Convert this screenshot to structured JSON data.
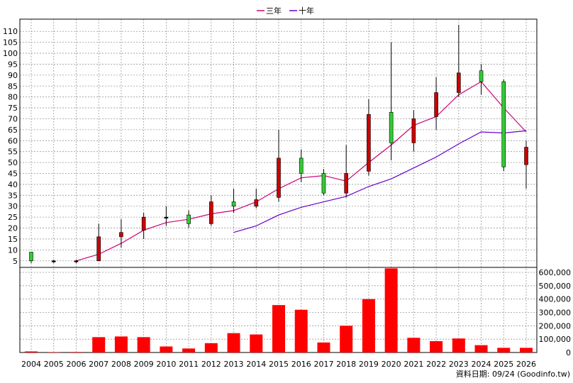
{
  "chart_data": {
    "type": "candlestick",
    "legend": [
      {
        "name": "三年",
        "color": "#cc0077"
      },
      {
        "name": "十年",
        "color": "#6600cc"
      }
    ],
    "categories": [
      "2004",
      "2005",
      "2006",
      "2007",
      "2008",
      "2009",
      "2010",
      "2011",
      "2012",
      "2013",
      "2014",
      "2015",
      "2016",
      "2017",
      "2018",
      "2019",
      "2020",
      "2021",
      "2022",
      "2023",
      "2024",
      "2025",
      "2026"
    ],
    "price_axis": {
      "ticks": [
        5,
        10,
        15,
        20,
        25,
        30,
        35,
        40,
        45,
        50,
        55,
        60,
        65,
        70,
        75,
        80,
        85,
        90,
        95,
        100,
        105,
        110
      ],
      "range": [
        2,
        113
      ]
    },
    "volume_axis": {
      "ticks": [
        "0",
        "100,000",
        "200,000",
        "300,000",
        "400,000",
        "500,000",
        "600,000"
      ],
      "range": [
        0,
        600000
      ]
    },
    "candles": [
      {
        "year": "2004",
        "open": 5,
        "close": 9,
        "high": 9,
        "low": 4
      },
      {
        "year": "2005",
        "open": 5,
        "close": 5,
        "high": 5.5,
        "low": 4
      },
      {
        "year": "2006",
        "open": 5,
        "close": 5,
        "high": 5.5,
        "low": 4
      },
      {
        "year": "2007",
        "open": 16,
        "close": 5,
        "high": 22,
        "low": 5
      },
      {
        "year": "2008",
        "open": 18,
        "close": 16,
        "high": 24,
        "low": 11
      },
      {
        "year": "2009",
        "open": 25,
        "close": 19,
        "high": 27,
        "low": 15
      },
      {
        "year": "2010",
        "open": 25,
        "close": 25,
        "high": 30,
        "low": 21
      },
      {
        "year": "2011",
        "open": 22,
        "close": 26,
        "high": 28,
        "low": 20
      },
      {
        "year": "2012",
        "open": 32,
        "close": 22,
        "high": 35,
        "low": 21
      },
      {
        "year": "2013",
        "open": 30,
        "close": 32,
        "high": 38,
        "low": 27
      },
      {
        "year": "2014",
        "open": 33,
        "close": 30,
        "high": 38,
        "low": 29
      },
      {
        "year": "2015",
        "open": 52,
        "close": 34,
        "high": 65,
        "low": 32
      },
      {
        "year": "2016",
        "open": 45,
        "close": 52,
        "high": 56,
        "low": 41
      },
      {
        "year": "2017",
        "open": 36,
        "close": 45,
        "high": 47,
        "low": 35
      },
      {
        "year": "2018",
        "open": 45,
        "close": 36,
        "high": 58,
        "low": 34
      },
      {
        "year": "2019",
        "open": 72,
        "close": 46,
        "high": 79,
        "low": 44
      },
      {
        "year": "2020",
        "open": 59,
        "close": 73,
        "high": 105,
        "low": 51
      },
      {
        "year": "2021",
        "open": 70,
        "close": 59,
        "high": 74,
        "low": 55
      },
      {
        "year": "2022",
        "open": 82,
        "close": 71,
        "high": 89,
        "low": 65
      },
      {
        "year": "2023",
        "open": 91,
        "close": 82,
        "high": 113,
        "low": 80
      },
      {
        "year": "2024",
        "open": 87,
        "close": 92,
        "high": 95,
        "low": 81
      },
      {
        "year": "2025",
        "open": 48,
        "close": 87,
        "high": 88,
        "low": 46
      },
      {
        "year": "2026",
        "open": 57,
        "close": 49,
        "high": 60,
        "low": 38
      }
    ],
    "series": [
      {
        "name": "三年",
        "values": [
          null,
          null,
          5,
          8,
          13,
          19,
          22.5,
          24,
          26.5,
          28,
          32,
          38,
          43,
          44,
          41.5,
          50,
          58,
          67,
          71,
          81,
          87,
          75,
          64
        ]
      },
      {
        "name": "十年",
        "values": [
          null,
          null,
          null,
          null,
          null,
          null,
          null,
          null,
          null,
          18,
          21,
          26,
          29.5,
          32,
          34.5,
          39,
          42.5,
          47.5,
          52.5,
          58.5,
          64,
          63.5,
          64.5
        ]
      }
    ],
    "volume": [
      8000,
      3000,
      4000,
      115000,
      120000,
      115000,
      45000,
      30000,
      70000,
      145000,
      135000,
      355000,
      320000,
      75000,
      200000,
      400000,
      630000,
      110000,
      85000,
      105000,
      55000,
      35000,
      35000
    ],
    "footer": "資料日期: 09/24  (Goodinfo.tw)"
  }
}
